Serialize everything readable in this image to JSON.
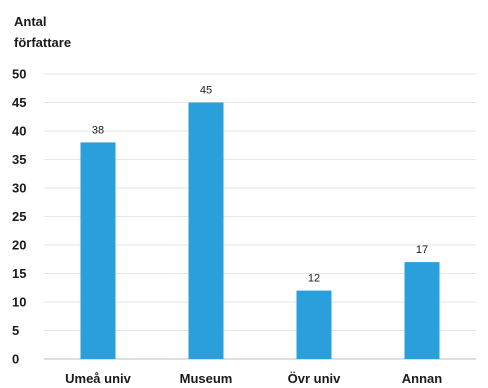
{
  "chart_data": {
    "type": "bar",
    "title": "",
    "ylabel_lines": [
      "Antal",
      "författare"
    ],
    "xlabel": "",
    "categories": [
      "Umeå univ",
      "Museum",
      "Övr univ",
      "Annan"
    ],
    "values": [
      38,
      45,
      12,
      17
    ],
    "data_labels": [
      "38",
      "45",
      "12",
      "17"
    ],
    "ylim": [
      0,
      50
    ],
    "yticks": [
      "0",
      "5",
      "10",
      "15",
      "20",
      "25",
      "30",
      "35",
      "40",
      "45",
      "50"
    ],
    "grid": true,
    "legend": "none",
    "bar_color": "#2a9fdc",
    "grid_color": "#e6e6e6",
    "axis_color": "#bdbdbd"
  }
}
